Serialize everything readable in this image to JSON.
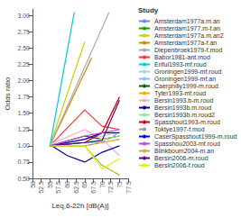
{
  "chart_data": {
    "type": "line",
    "title": "Study",
    "xlabel": "Leq,6-22h [dB(A)]",
    "ylabel": "Odds ratio",
    "xlim": [
      50.0,
      77.5
    ],
    "ylim": [
      0.5,
      3.1
    ],
    "xticks": [
      50,
      52.5,
      55,
      57.5,
      60,
      62.5,
      65,
      67.5,
      70,
      72.5,
      75,
      77.5
    ],
    "yticks": [
      {
        "value": 0.5,
        "label": "0.50"
      },
      {
        "value": 0.75,
        "label": "0.75"
      },
      {
        "value": 1.0,
        "label": "1.00"
      },
      {
        "value": 1.25,
        "label": "1.25"
      },
      {
        "value": 1.5,
        "label": "1.50"
      },
      {
        "value": 1.75,
        "label": "1.75"
      },
      {
        "value": 2.0,
        "label": "2.00"
      },
      {
        "value": 2.25,
        "label": "2.25"
      },
      {
        "value": 2.5,
        "label": "2.50"
      },
      {
        "value": 2.75,
        "label": "2.75"
      },
      {
        "value": 3.0,
        "label": "3.00"
      }
    ],
    "grid": false,
    "legend": "right",
    "series": [
      {
        "name": "Amsterdam1977a.m.an",
        "color": "#6688EE",
        "x": [
          55,
          65
        ],
        "values": [
          1.0,
          1.05
        ]
      },
      {
        "name": "Amsterdam1977.m-f.an",
        "color": "#00AA00",
        "x": [
          55,
          65
        ],
        "values": [
          1.0,
          1.0
        ]
      },
      {
        "name": "Amsterdam1977a.m.an2",
        "color": "#CCCC00",
        "x": [
          55,
          65
        ],
        "values": [
          1.0,
          2.6
        ]
      },
      {
        "name": "Amsterdam1977a-f.an",
        "color": "#CC8800",
        "x": [
          55,
          67
        ],
        "values": [
          1.0,
          2.35
        ]
      },
      {
        "name": "Diepenbroek1979-f.mod",
        "color": "#AAAAAA",
        "x": [
          55,
          72
        ],
        "values": [
          1.0,
          3.05
        ]
      },
      {
        "name": "Babor1981-ant.mod",
        "color": "#FF3333",
        "x": [
          55,
          65,
          70,
          75
        ],
        "values": [
          1.0,
          1.55,
          1.3,
          1.25
        ]
      },
      {
        "name": "Eriful1993-mf.roud",
        "color": "#00CCCC",
        "x": [
          55,
          62
        ],
        "values": [
          1.0,
          3.05
        ]
      },
      {
        "name": "Groningen1999-mf.roud",
        "color": "#AACCFF",
        "x": [
          55,
          65,
          70,
          75
        ],
        "values": [
          1.0,
          1.1,
          1.15,
          1.2
        ]
      },
      {
        "name": "Groningen1999-mf.an",
        "color": "#88BBFF",
        "x": [
          55,
          65,
          70,
          75
        ],
        "values": [
          1.0,
          1.05,
          1.05,
          1.1
        ]
      },
      {
        "name": "Caerphilly1999-m.roud",
        "color": "#006600",
        "x": [
          55,
          65,
          70,
          75
        ],
        "values": [
          1.0,
          1.15,
          1.1,
          1.15
        ]
      },
      {
        "name": "Tyter1993-mf.roud",
        "color": "#FFAA00",
        "x": [
          55,
          65,
          70,
          75
        ],
        "values": [
          1.0,
          1.0,
          1.05,
          1.1
        ]
      },
      {
        "name": "Bersin1993.b-m.roud",
        "color": "#FFAACC",
        "x": [
          55,
          65,
          70,
          75
        ],
        "values": [
          1.02,
          1.25,
          1.1,
          0.85
        ]
      },
      {
        "name": "Bersin1993b.m.roud",
        "color": "#000099",
        "x": [
          55,
          60,
          65,
          70,
          75
        ],
        "values": [
          1.02,
          0.85,
          0.75,
          0.9,
          1.0
        ]
      },
      {
        "name": "Bersin1993b.m.roud2",
        "color": "#88EE88",
        "x": [
          55,
          65,
          70,
          75
        ],
        "values": [
          1.02,
          1.05,
          1.1,
          1.15
        ]
      },
      {
        "name": "Spasshout1993-m.roud",
        "color": "#CC0000",
        "x": [
          55,
          65,
          70,
          75
        ],
        "values": [
          1.0,
          1.05,
          1.2,
          1.75
        ]
      },
      {
        "name": "Toktye1997-f.mod",
        "color": "#999999",
        "line_style": "dashed",
        "x": [
          55,
          65,
          70,
          75
        ],
        "values": [
          1.0,
          1.0,
          1.05,
          1.2
        ]
      },
      {
        "name": "CaserSpasshout1999-m.roud",
        "color": "#0000CC",
        "x": [
          55,
          65,
          70,
          75
        ],
        "values": [
          1.0,
          1.1,
          1.2,
          1.2
        ]
      },
      {
        "name": "Spasshou2003-mf.roud",
        "color": "#CC44CC",
        "x": [
          55,
          65,
          70,
          75
        ],
        "values": [
          1.0,
          1.15,
          1.2,
          1.25
        ]
      },
      {
        "name": "Blinkboum2004-m.an",
        "color": "#CCAA44",
        "x": [
          55,
          65,
          70,
          75
        ],
        "values": [
          1.0,
          1.0,
          0.7,
          0.55
        ]
      },
      {
        "name": "Bersin2006-m.roud",
        "color": "#660088",
        "x": [
          55,
          65,
          70,
          75
        ],
        "values": [
          1.0,
          1.05,
          1.08,
          1.7
        ]
      },
      {
        "name": "Bersin2006-f.roud",
        "color": "#CCFF00",
        "x": [
          55,
          65,
          70,
          75
        ],
        "values": [
          1.0,
          1.0,
          0.65,
          0.8
        ]
      }
    ]
  }
}
